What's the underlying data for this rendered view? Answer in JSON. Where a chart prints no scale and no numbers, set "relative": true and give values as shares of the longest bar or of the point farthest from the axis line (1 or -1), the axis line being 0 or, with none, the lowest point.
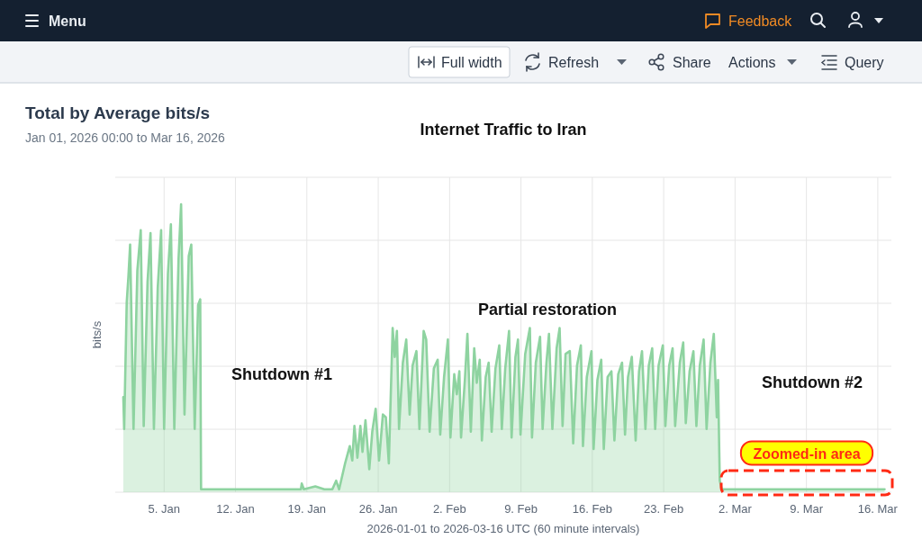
{
  "chart_data": {
    "type": "area",
    "title": "Internet Traffic to Iran",
    "xlabel": "2026-01-01 to 2026-03-16 UTC (60 minute intervals)",
    "ylabel": "bits/s",
    "relative": true,
    "grid": true,
    "color": "#8ed3a0",
    "xlim": [
      "2025-12-31T05:00",
      "2026-03-17T08:00"
    ],
    "xticks": [
      {
        "value": "2026-01-05",
        "label": "5. Jan"
      },
      {
        "value": "2026-01-12",
        "label": "12. Jan"
      },
      {
        "value": "2026-01-19",
        "label": "19. Jan"
      },
      {
        "value": "2026-01-26",
        "label": "26. Jan"
      },
      {
        "value": "2026-02-02",
        "label": "2. Feb"
      },
      {
        "value": "2026-02-09",
        "label": "9. Feb"
      },
      {
        "value": "2026-02-16",
        "label": "16. Feb"
      },
      {
        "value": "2026-02-23",
        "label": "23. Feb"
      },
      {
        "value": "2026-03-02",
        "label": "2. Mar"
      },
      {
        "value": "2026-03-09",
        "label": "9. Mar"
      },
      {
        "value": "2026-03-16",
        "label": "16. Mar"
      }
    ],
    "x": [
      "2026-01-01T00:00",
      "2026-01-01T02:00",
      "2026-01-01T08:00",
      "2026-01-01T12:00",
      "2026-01-01T16:00",
      "2026-01-02T00:00",
      "2026-01-02T09:00",
      "2026-01-02T17:00",
      "2026-01-03T00:00",
      "2026-01-03T09:00",
      "2026-01-03T16:00",
      "2026-01-04T00:00",
      "2026-01-04T09:00",
      "2026-01-04T17:00",
      "2026-01-05T00:00",
      "2026-01-05T09:00",
      "2026-01-05T16:00",
      "2026-01-06T00:00",
      "2026-01-06T10:00",
      "2026-01-06T16:00",
      "2026-01-07T00:00",
      "2026-01-07T10:00",
      "2026-01-07T16:00",
      "2026-01-08T00:00",
      "2026-01-08T08:00",
      "2026-01-08T13:00",
      "2026-01-08T15:00",
      "2026-01-12T00:00",
      "2026-01-16T00:00",
      "2026-01-18T10:00",
      "2026-01-18T12:00",
      "2026-01-18T17:00",
      "2026-01-19T20:00",
      "2026-01-20T17:00",
      "2026-01-21T12:00",
      "2026-01-21T21:00",
      "2026-01-22T04:00",
      "2026-01-22T18:00",
      "2026-01-23T05:00",
      "2026-01-23T11:00",
      "2026-01-23T16:00",
      "2026-01-23T23:00",
      "2026-01-24T06:00",
      "2026-01-24T11:00",
      "2026-01-24T18:00",
      "2026-01-25T03:00",
      "2026-01-25T10:00",
      "2026-01-25T18:00",
      "2026-01-26T02:00",
      "2026-01-26T11:00",
      "2026-01-26T18:00",
      "2026-01-27T01:00",
      "2026-01-27T10:00",
      "2026-01-27T15:00",
      "2026-01-27T20:00",
      "2026-01-28T01:00",
      "2026-01-28T10:00",
      "2026-01-28T18:00",
      "2026-01-29T02:00",
      "2026-01-29T09:00",
      "2026-01-29T18:00",
      "2026-01-30T01:00",
      "2026-01-30T11:00",
      "2026-01-30T17:00",
      "2026-01-31T01:00",
      "2026-01-31T11:00",
      "2026-01-31T20:00",
      "2026-02-01T02:00",
      "2026-02-01T11:00",
      "2026-02-01T20:00",
      "2026-02-02T02:00",
      "2026-02-02T11:00",
      "2026-02-02T17:00",
      "2026-02-02T23:00",
      "2026-02-03T03:00",
      "2026-02-03T12:00",
      "2026-02-03T18:00",
      "2026-02-04T02:00",
      "2026-02-04T10:00",
      "2026-02-04T16:00",
      "2026-02-04T23:00",
      "2026-02-05T04:00",
      "2026-02-05T13:00",
      "2026-02-05T20:00",
      "2026-02-06T03:00",
      "2026-02-06T12:00",
      "2026-02-06T21:00",
      "2026-02-07T03:00",
      "2026-02-07T11:00",
      "2026-02-07T20:00",
      "2026-02-08T02:00",
      "2026-02-08T11:00",
      "2026-02-08T17:00",
      "2026-02-08T23:00",
      "2026-02-09T10:00",
      "2026-02-09T21:00",
      "2026-02-10T02:00",
      "2026-02-10T11:00",
      "2026-02-10T21:00",
      "2026-02-11T03:00",
      "2026-02-11T12:00",
      "2026-02-11T18:00",
      "2026-02-12T02:00",
      "2026-02-12T12:00",
      "2026-02-12T19:00",
      "2026-02-13T02:00",
      "2026-02-13T09:00",
      "2026-02-13T19:00",
      "2026-02-14T03:00",
      "2026-02-14T12:00",
      "2026-02-14T21:00",
      "2026-02-15T02:00",
      "2026-02-15T11:00",
      "2026-02-15T22:00",
      "2026-02-16T03:00",
      "2026-02-16T12:00",
      "2026-02-16T21:00",
      "2026-02-17T03:00",
      "2026-02-17T12:00",
      "2026-02-17T21:00",
      "2026-02-18T04:00",
      "2026-02-18T13:00",
      "2026-02-18T22:00",
      "2026-02-19T05:00",
      "2026-02-19T12:00",
      "2026-02-19T21:00",
      "2026-02-20T06:00",
      "2026-02-20T14:00",
      "2026-02-20T21:00",
      "2026-02-21T05:00",
      "2026-02-21T13:00",
      "2026-02-21T21:00",
      "2026-02-22T04:00",
      "2026-02-22T12:00",
      "2026-02-22T22:00",
      "2026-02-23T04:00",
      "2026-02-23T13:00",
      "2026-02-23T21:00",
      "2026-02-24T03:00",
      "2026-02-24T14:00",
      "2026-02-24T22:00",
      "2026-02-25T04:00",
      "2026-02-25T13:00",
      "2026-02-25T22:00",
      "2026-02-26T05:00",
      "2026-02-26T13:00",
      "2026-02-26T22:00",
      "2026-02-27T05:00",
      "2026-02-27T14:00",
      "2026-02-27T22:00",
      "2026-02-28T05:00",
      "2026-02-28T08:00",
      "2026-02-28T12:00",
      "2026-02-28T17:00",
      "2026-03-03T00:00",
      "2026-03-06T00:00",
      "2026-03-09T00:00",
      "2026-03-12T00:00",
      "2026-03-16T16:00"
    ],
    "values": [
      0.33,
      0.22,
      0.66,
      0.75,
      0.86,
      0.22,
      0.77,
      0.91,
      0.23,
      0.73,
      0.9,
      0.22,
      0.71,
      0.91,
      0.22,
      0.76,
      0.93,
      0.22,
      0.81,
      1,
      0.27,
      0.82,
      0.86,
      0.22,
      0.65,
      0.67,
      0.01,
      0.01,
      0.01,
      0.01,
      0.03,
      0.01,
      0.02,
      0.01,
      0.01,
      0.04,
      0.01,
      0.1,
      0.16,
      0.11,
      0.23,
      0.12,
      0.23,
      0.14,
      0.25,
      0.08,
      0.21,
      0.29,
      0.11,
      0.27,
      0.26,
      0.1,
      0.57,
      0.47,
      0.56,
      0.22,
      0.45,
      0.53,
      0.27,
      0.44,
      0.49,
      0.22,
      0.56,
      0.53,
      0.21,
      0.43,
      0.46,
      0.2,
      0.4,
      0.53,
      0.19,
      0.41,
      0.34,
      0.42,
      0.19,
      0.39,
      0.55,
      0.21,
      0.5,
      0.38,
      0.46,
      0.18,
      0.4,
      0.45,
      0.21,
      0.43,
      0.51,
      0.22,
      0.43,
      0.56,
      0.19,
      0.47,
      0.53,
      0.2,
      0.48,
      0.57,
      0.19,
      0.45,
      0.54,
      0.22,
      0.45,
      0.55,
      0.22,
      0.5,
      0.57,
      0.23,
      0.48,
      0.49,
      0.17,
      0.44,
      0.51,
      0.16,
      0.4,
      0.49,
      0.15,
      0.39,
      0.46,
      0.15,
      0.4,
      0.42,
      0.18,
      0.41,
      0.45,
      0.2,
      0.4,
      0.47,
      0.18,
      0.42,
      0.49,
      0.22,
      0.44,
      0.5,
      0.22,
      0.44,
      0.51,
      0.23,
      0.44,
      0.5,
      0.23,
      0.45,
      0.52,
      0.24,
      0.42,
      0.49,
      0.23,
      0.44,
      0.53,
      0.22,
      0.45,
      0.55,
      0.26,
      0.39,
      0.04,
      0.01,
      0.01,
      0.01,
      0.01,
      0.01,
      0.01
    ],
    "annotations": [
      "Menu",
      "Feedback",
      "Full width",
      "Refresh",
      "Share",
      "Actions",
      "Query",
      "Total by Average bits/s",
      "Jan 01, 2026 00:00 to Mar 16, 2026",
      "Shutdown #1",
      "Partial restoration",
      "Shutdown #2",
      "Zoomed-in area"
    ]
  }
}
